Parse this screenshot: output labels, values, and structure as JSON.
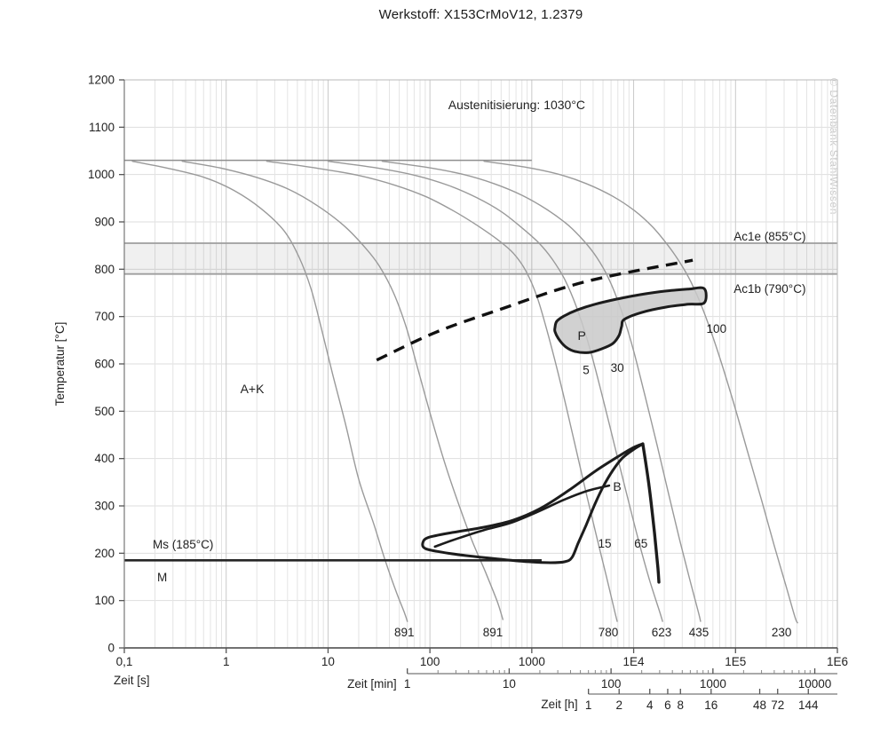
{
  "chart_data": {
    "type": "line",
    "title": "Werkstoff: X153CrMoV12, 1.2379",
    "ylabel": "Temperatur [°C]",
    "xlabels": {
      "s": "Zeit [s]",
      "min": "Zeit [min]",
      "h": "Zeit [h]"
    },
    "watermark": "© Datenbank StahlWissen",
    "y_axis": {
      "min": 0,
      "max": 1200,
      "step": 100
    },
    "x_axis_s": {
      "min": 0.1,
      "max": 1000000,
      "tick_labels": [
        "0,1",
        "1",
        "10",
        "100",
        "1000",
        "1E4",
        "1E5",
        "1E6"
      ],
      "tick_values": [
        0.1,
        1,
        10,
        100,
        1000,
        10000,
        100000,
        1000000
      ]
    },
    "x_axis_min": {
      "tick_labels": [
        "1",
        "10",
        "100",
        "1000",
        "10000"
      ],
      "tick_values_s": [
        60,
        600,
        6000,
        60000,
        600000
      ],
      "minor_bases_s": [
        60,
        600,
        6000,
        60000
      ]
    },
    "x_axis_h": {
      "tick_labels": [
        "1",
        "2",
        "4",
        "6",
        "8",
        "16",
        "48",
        "72",
        "144"
      ],
      "tick_values_s": [
        3600,
        7200,
        14400,
        21600,
        28800,
        57600,
        172800,
        259200,
        518400
      ]
    },
    "temperature_lines": {
      "austenitize": {
        "temp": 1030,
        "t_start": 0.1,
        "t_end": 1000
      },
      "ac1e": {
        "temp": 855,
        "label": "Ac1e (855°C)"
      },
      "ac1b": {
        "temp": 790,
        "label": "Ac1b (790°C)"
      },
      "ms": {
        "temp": 185,
        "label": "Ms (185°C)",
        "t_start": 0.1,
        "t_end": 1250
      }
    },
    "cooling_curves": [
      {
        "hardness": "891",
        "label_t": 56,
        "points": [
          [
            0.12,
            1028
          ],
          [
            0.27,
            1013
          ],
          [
            0.61,
            994
          ],
          [
            1.2,
            966
          ],
          [
            2.2,
            928
          ],
          [
            3.7,
            881
          ],
          [
            5.2,
            825
          ],
          [
            6.8,
            759
          ],
          [
            8.6,
            675
          ],
          [
            11,
            581
          ],
          [
            15,
            469
          ],
          [
            20,
            356
          ],
          [
            28,
            263
          ],
          [
            36,
            188
          ],
          [
            46,
            122
          ],
          [
            56,
            75
          ],
          [
            60,
            56
          ]
        ]
      },
      {
        "hardness": "891",
        "label_t": 415,
        "points": [
          [
            0.37,
            1028
          ],
          [
            0.91,
            1013
          ],
          [
            2,
            994
          ],
          [
            4.1,
            969
          ],
          [
            7.9,
            934
          ],
          [
            14.5,
            891
          ],
          [
            23.5,
            844
          ],
          [
            32,
            806
          ],
          [
            44,
            750
          ],
          [
            59,
            675
          ],
          [
            78,
            581
          ],
          [
            106,
            478
          ],
          [
            143,
            384
          ],
          [
            194,
            300
          ],
          [
            261,
            225
          ],
          [
            353,
            159
          ],
          [
            458,
            98
          ],
          [
            520,
            60
          ]
        ]
      },
      {
        "hardness": "780",
        "label_t": 5640,
        "points": [
          [
            2.5,
            1028
          ],
          [
            7.5,
            1014
          ],
          [
            20,
            998
          ],
          [
            46,
            977
          ],
          [
            92,
            953
          ],
          [
            168,
            924
          ],
          [
            289,
            893
          ],
          [
            458,
            863
          ],
          [
            658,
            834
          ],
          [
            871,
            797
          ],
          [
            1130,
            741
          ],
          [
            1470,
            656
          ],
          [
            1950,
            553
          ],
          [
            2580,
            441
          ],
          [
            3410,
            328
          ],
          [
            4340,
            234
          ],
          [
            5410,
            150
          ],
          [
            6490,
            79
          ],
          [
            6890,
            56
          ]
        ]
      },
      {
        "hardness": "623",
        "label_t": 18800,
        "points": [
          [
            10,
            1028
          ],
          [
            30,
            1014
          ],
          [
            72,
            998
          ],
          [
            152,
            977
          ],
          [
            289,
            951
          ],
          [
            507,
            921
          ],
          [
            804,
            887
          ],
          [
            1180,
            855
          ],
          [
            1590,
            821
          ],
          [
            2110,
            778
          ],
          [
            2790,
            716
          ],
          [
            3700,
            634
          ],
          [
            4900,
            534
          ],
          [
            6490,
            428
          ],
          [
            8590,
            323
          ],
          [
            11100,
            229
          ],
          [
            14200,
            146
          ],
          [
            18100,
            75
          ],
          [
            19200,
            56
          ]
        ]
      },
      {
        "hardness": "435",
        "label_t": 43700,
        "points": [
          [
            34,
            1028
          ],
          [
            88,
            1016
          ],
          [
            205,
            1001
          ],
          [
            423,
            981
          ],
          [
            804,
            956
          ],
          [
            1410,
            926
          ],
          [
            2280,
            893
          ],
          [
            3270,
            859
          ],
          [
            4340,
            825
          ],
          [
            5640,
            782
          ],
          [
            7310,
            722
          ],
          [
            9690,
            638
          ],
          [
            12800,
            536
          ],
          [
            17000,
            428
          ],
          [
            22100,
            324
          ],
          [
            28100,
            231
          ],
          [
            35000,
            150
          ],
          [
            42800,
            79
          ],
          [
            45400,
            56
          ]
        ]
      },
      {
        "hardness": "230",
        "label_t": 283000,
        "points": [
          [
            340,
            1028
          ],
          [
            840,
            1016
          ],
          [
            1800,
            1001
          ],
          [
            3410,
            981
          ],
          [
            6240,
            954
          ],
          [
            10300,
            923
          ],
          [
            15400,
            889
          ],
          [
            21600,
            851
          ],
          [
            28100,
            816
          ],
          [
            36500,
            773
          ],
          [
            48300,
            713
          ],
          [
            66500,
            628
          ],
          [
            93600,
            525
          ],
          [
            132000,
            413
          ],
          [
            182000,
            309
          ],
          [
            240000,
            216
          ],
          [
            313000,
            131
          ],
          [
            382000,
            66
          ],
          [
            406000,
            53
          ]
        ]
      }
    ],
    "dashed_boundary": [
      [
        30,
        608
      ],
      [
        112,
        666
      ],
      [
        458,
        713
      ],
      [
        3410,
        774
      ],
      [
        38000,
        819
      ]
    ],
    "pearlite_region": {
      "outline": [
        [
          1690,
          677
        ],
        [
          1760,
          690
        ],
        [
          2070,
          701
        ],
        [
          2790,
          714
        ],
        [
          4170,
          726
        ],
        [
          6890,
          737
        ],
        [
          11400,
          746
        ],
        [
          20800,
          754
        ],
        [
          34400,
          758
        ],
        [
          49300,
          759
        ],
        [
          49300,
          729
        ],
        [
          34400,
          726
        ],
        [
          20800,
          720
        ],
        [
          12100,
          709
        ],
        [
          8090,
          694
        ],
        [
          7620,
          679
        ],
        [
          7180,
          660
        ],
        [
          6240,
          643
        ],
        [
          4900,
          632
        ],
        [
          3620,
          624
        ],
        [
          2680,
          626
        ],
        [
          2150,
          636
        ],
        [
          1830,
          653
        ],
        [
          1690,
          668
        ]
      ]
    },
    "bainite_region": {
      "outline": [
        [
          96,
          233
        ],
        [
          168,
          244
        ],
        [
          340,
          255
        ],
        [
          658,
          270
        ],
        [
          1200,
          294
        ],
        [
          2280,
          332
        ],
        [
          4170,
          373
        ],
        [
          6890,
          403
        ],
        [
          9690,
          422
        ],
        [
          12300,
          431
        ],
        [
          10100,
          420
        ],
        [
          7760,
          401
        ],
        [
          6240,
          375
        ],
        [
          5090,
          343
        ],
        [
          4170,
          304
        ],
        [
          3410,
          259
        ],
        [
          2850,
          221
        ],
        [
          2480,
          191
        ],
        [
          2110,
          182
        ],
        [
          1530,
          180
        ],
        [
          925,
          182
        ],
        [
          458,
          188
        ],
        [
          227,
          195
        ],
        [
          124,
          203
        ],
        [
          90,
          210
        ],
        [
          85,
          221
        ]
      ],
      "right_drop": [
        [
          12300,
          431
        ],
        [
          14200,
          341
        ],
        [
          16000,
          244
        ],
        [
          17300,
          169
        ],
        [
          17700,
          139
        ]
      ],
      "inner_line": [
        [
          112,
          214
        ],
        [
          186,
          231
        ],
        [
          340,
          249
        ],
        [
          619,
          264
        ],
        [
          1130,
          287
        ],
        [
          2070,
          313
        ],
        [
          3550,
          332
        ],
        [
          5740,
          343
        ]
      ]
    },
    "annotations": [
      {
        "text": "Austenitisierung: 1030°C",
        "t": 712,
        "T": 1138,
        "anchor": "middle",
        "size": 14
      },
      {
        "text": "Ac1e (855°C)",
        "t": 96000,
        "T": 861,
        "anchor": "start",
        "size": 13.5
      },
      {
        "text": "Ac1b (790°C)",
        "t": 96000,
        "T": 750,
        "anchor": "start",
        "size": 13.5
      },
      {
        "text": "Ms (185°C)",
        "t": 0.19,
        "T": 210,
        "anchor": "start",
        "size": 13.5
      },
      {
        "text": "M",
        "t": 0.21,
        "T": 141,
        "anchor": "start",
        "size": 13.5
      },
      {
        "text": "A+K",
        "t": 1.8,
        "T": 538,
        "anchor": "middle",
        "size": 14
      },
      {
        "text": "P",
        "t": 3100,
        "T": 651,
        "anchor": "middle",
        "size": 14
      },
      {
        "text": "B",
        "t": 6900,
        "T": 332,
        "anchor": "middle",
        "size": 14
      },
      {
        "text": "5",
        "t": 3410,
        "T": 578,
        "anchor": "middle",
        "size": 13.5
      },
      {
        "text": "30",
        "t": 6900,
        "T": 583,
        "anchor": "middle",
        "size": 13.5
      },
      {
        "text": "100",
        "t": 65000,
        "T": 666,
        "anchor": "middle",
        "size": 13.5
      },
      {
        "text": "15",
        "t": 5200,
        "T": 212,
        "anchor": "middle",
        "size": 13.5
      },
      {
        "text": "65",
        "t": 11800,
        "T": 212,
        "anchor": "middle",
        "size": 13.5
      }
    ],
    "colors": {
      "curve": "#9a9a9a",
      "thick": "#1c1c1c",
      "pearlite_fill": "#c9c9c9",
      "band_fill": "#000000",
      "grid_major": "#c9c9c9",
      "grid_minor": "#e4e4e4",
      "text": "#222222",
      "watermark": "#c9c9c9",
      "ac_line": "#9e9e9e",
      "axis": "#555555"
    }
  }
}
